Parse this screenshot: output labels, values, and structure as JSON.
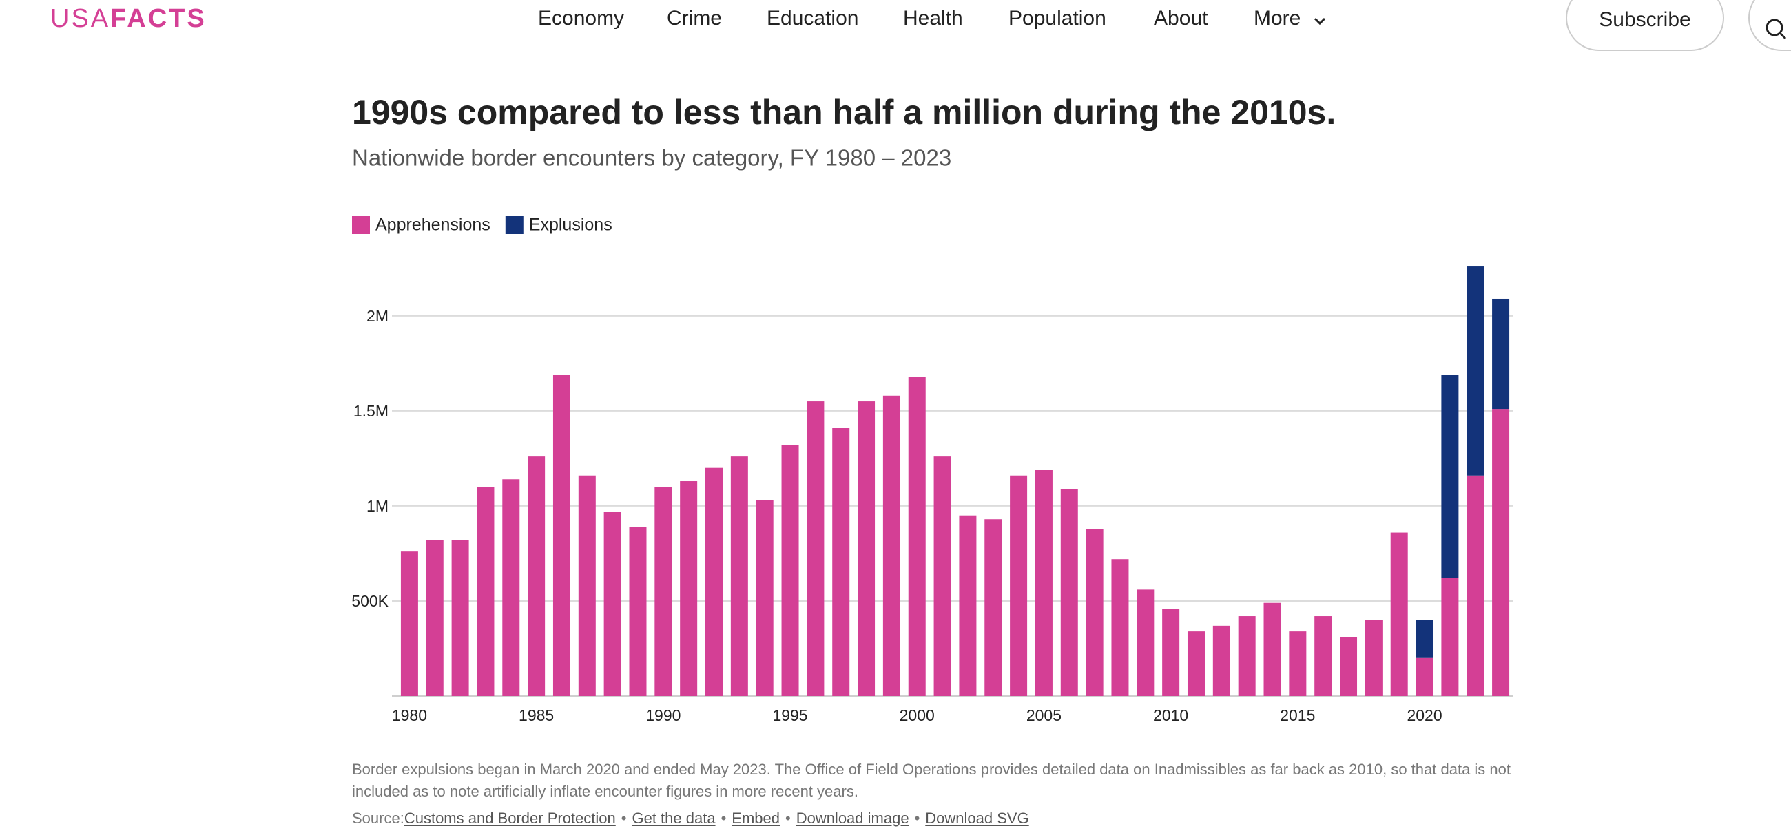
{
  "header": {
    "logo_light": "USA",
    "logo_bold": "FACTS",
    "nav": [
      "Economy",
      "Crime",
      "Education",
      "Health",
      "Population",
      "About",
      "More"
    ],
    "subscribe": "Subscribe"
  },
  "chart_data": {
    "type": "stacked_bar",
    "title": "1990s compared to less than half a million during the 2010s.",
    "subtitle": "Nationwide border encounters by category, FY 1980 – 2023",
    "x": [
      1980,
      1981,
      1982,
      1983,
      1984,
      1985,
      1986,
      1987,
      1988,
      1989,
      1990,
      1991,
      1992,
      1993,
      1994,
      1995,
      1996,
      1997,
      1998,
      1999,
      2000,
      2001,
      2002,
      2003,
      2004,
      2005,
      2006,
      2007,
      2008,
      2009,
      2010,
      2011,
      2012,
      2013,
      2014,
      2015,
      2016,
      2017,
      2018,
      2019,
      2020,
      2021,
      2022,
      2023
    ],
    "xlim": [
      1979.5,
      2023.5
    ],
    "xticks": [
      1980,
      1985,
      1990,
      1995,
      2000,
      2005,
      2010,
      2015,
      2020
    ],
    "ylim": [
      0,
      2300000
    ],
    "yticks": [
      {
        "value": 500000,
        "label": "500K"
      },
      {
        "value": 1000000,
        "label": "1M"
      },
      {
        "value": 1500000,
        "label": "1.5M"
      },
      {
        "value": 2000000,
        "label": "2M"
      }
    ],
    "grid": true,
    "legend": "top-left",
    "series": [
      {
        "name": "Apprehensions",
        "color": "#d43f95",
        "values": [
          760000,
          820000,
          820000,
          1100000,
          1140000,
          1260000,
          1690000,
          1160000,
          970000,
          890000,
          1100000,
          1130000,
          1200000,
          1260000,
          1030000,
          1320000,
          1550000,
          1410000,
          1550000,
          1580000,
          1680000,
          1260000,
          950000,
          930000,
          1160000,
          1190000,
          1090000,
          880000,
          720000,
          560000,
          460000,
          340000,
          370000,
          420000,
          490000,
          340000,
          420000,
          310000,
          400000,
          860000,
          200000,
          620000,
          1160000,
          1510000
        ]
      },
      {
        "name": "Explusions",
        "color": "#13337a",
        "values": [
          null,
          null,
          null,
          null,
          null,
          null,
          null,
          null,
          null,
          null,
          null,
          null,
          null,
          null,
          null,
          null,
          null,
          null,
          null,
          null,
          null,
          null,
          null,
          null,
          null,
          null,
          null,
          null,
          null,
          null,
          null,
          null,
          null,
          null,
          null,
          null,
          null,
          null,
          null,
          null,
          200000,
          1070000,
          1100000,
          580000
        ]
      }
    ]
  },
  "footnote": "Border expulsions began in March 2020 and ended May 2023. The Office of Field Operations provides detailed data on Inadmissibles as far back as 2010, so that data is not included as to note artificially inflate encounter figures in more recent years.",
  "source": {
    "label": "Source:",
    "links": [
      "Customs and Border Protection",
      "Get the data",
      "Embed",
      "Download image",
      "Download SVG"
    ],
    "separator": "•"
  }
}
